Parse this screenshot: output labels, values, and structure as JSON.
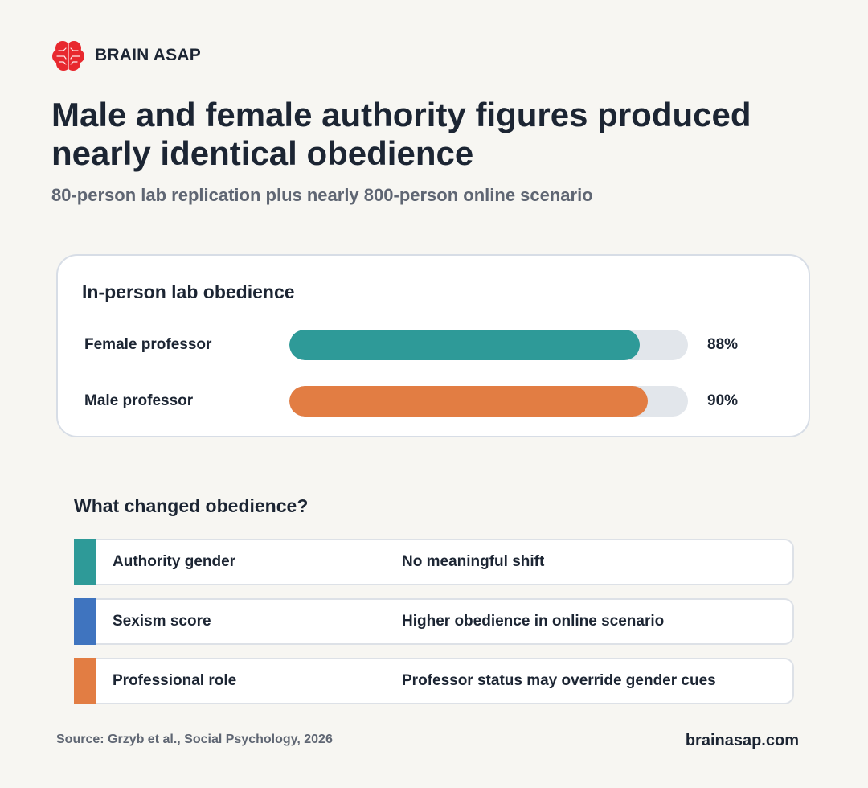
{
  "brand": {
    "name": "BRAIN ASAP",
    "logo_icon": "brain-icon",
    "logo_color": "#e8282e"
  },
  "title": "Male and female authority figures produced nearly identical obedience",
  "subtitle": "80-person lab replication plus nearly 800-person online scenario",
  "chart_data": {
    "type": "bar",
    "orientation": "horizontal",
    "title": "In-person lab obedience",
    "categories": [
      "Female professor",
      "Male professor"
    ],
    "values": [
      88,
      90
    ],
    "value_labels": [
      "88%",
      "90%"
    ],
    "unit": "%",
    "xlim": [
      0,
      100
    ],
    "colors": [
      "#2e9a98",
      "#e27d43"
    ],
    "track_color": "#e2e6eb",
    "grid": false
  },
  "factors": {
    "title": "What changed obedience?",
    "rows": [
      {
        "factor": "Authority gender",
        "effect": "No meaningful shift",
        "color": "#2e9a98"
      },
      {
        "factor": "Sexism score",
        "effect": "Higher obedience in online scenario",
        "color": "#3f74bf"
      },
      {
        "factor": "Professional role",
        "effect": "Professor status may override gender cues",
        "color": "#e27d43"
      }
    ]
  },
  "footer": {
    "source": "Source: Grzyb et al., Social Psychology, 2026",
    "site": "brainasap.com"
  }
}
